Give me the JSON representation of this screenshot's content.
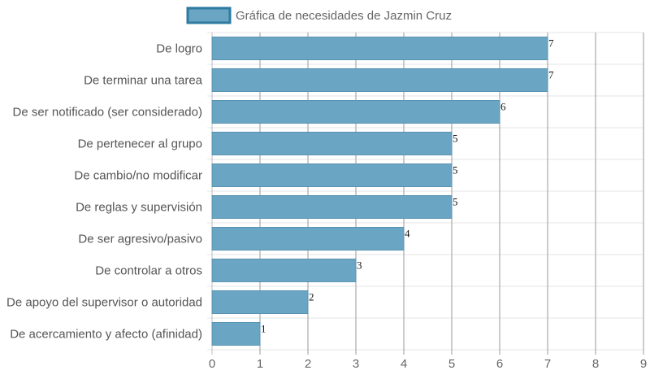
{
  "chart_data": {
    "type": "bar",
    "orientation": "horizontal",
    "categories": [
      "De logro",
      "De terminar una tarea",
      "De ser notificado (ser considerado)",
      "De pertenecer al grupo",
      "De cambio/no modificar",
      "De reglas y supervisión",
      "De ser agresivo/pasivo",
      "De controlar a otros",
      "De apoyo del supervisor o autoridad",
      "De acercamiento y afecto (afinidad)"
    ],
    "series": [
      {
        "name": "Gráfica de necesidades de Jazmin Cruz",
        "values": [
          7,
          7,
          6,
          5,
          5,
          5,
          4,
          3,
          2,
          1
        ],
        "data_labels": [
          "7",
          "7",
          "6",
          "5",
          "5",
          "5",
          "4",
          "3",
          "2",
          "1"
        ]
      }
    ],
    "xlim": [
      0,
      9
    ],
    "x_ticks": [
      "0",
      "1",
      "2",
      "3",
      "4",
      "5",
      "6",
      "7",
      "8",
      "9"
    ],
    "grid": true,
    "legend_position": "top",
    "colors": {
      "bar_fill": "#6aa5c4",
      "bar_stroke": "#5a93b2",
      "legend_stroke": "#2f7aa1",
      "grid": "#e4e4e4",
      "vertical_grid": "#9a9a9a",
      "axis": "#bdbdbd"
    }
  }
}
